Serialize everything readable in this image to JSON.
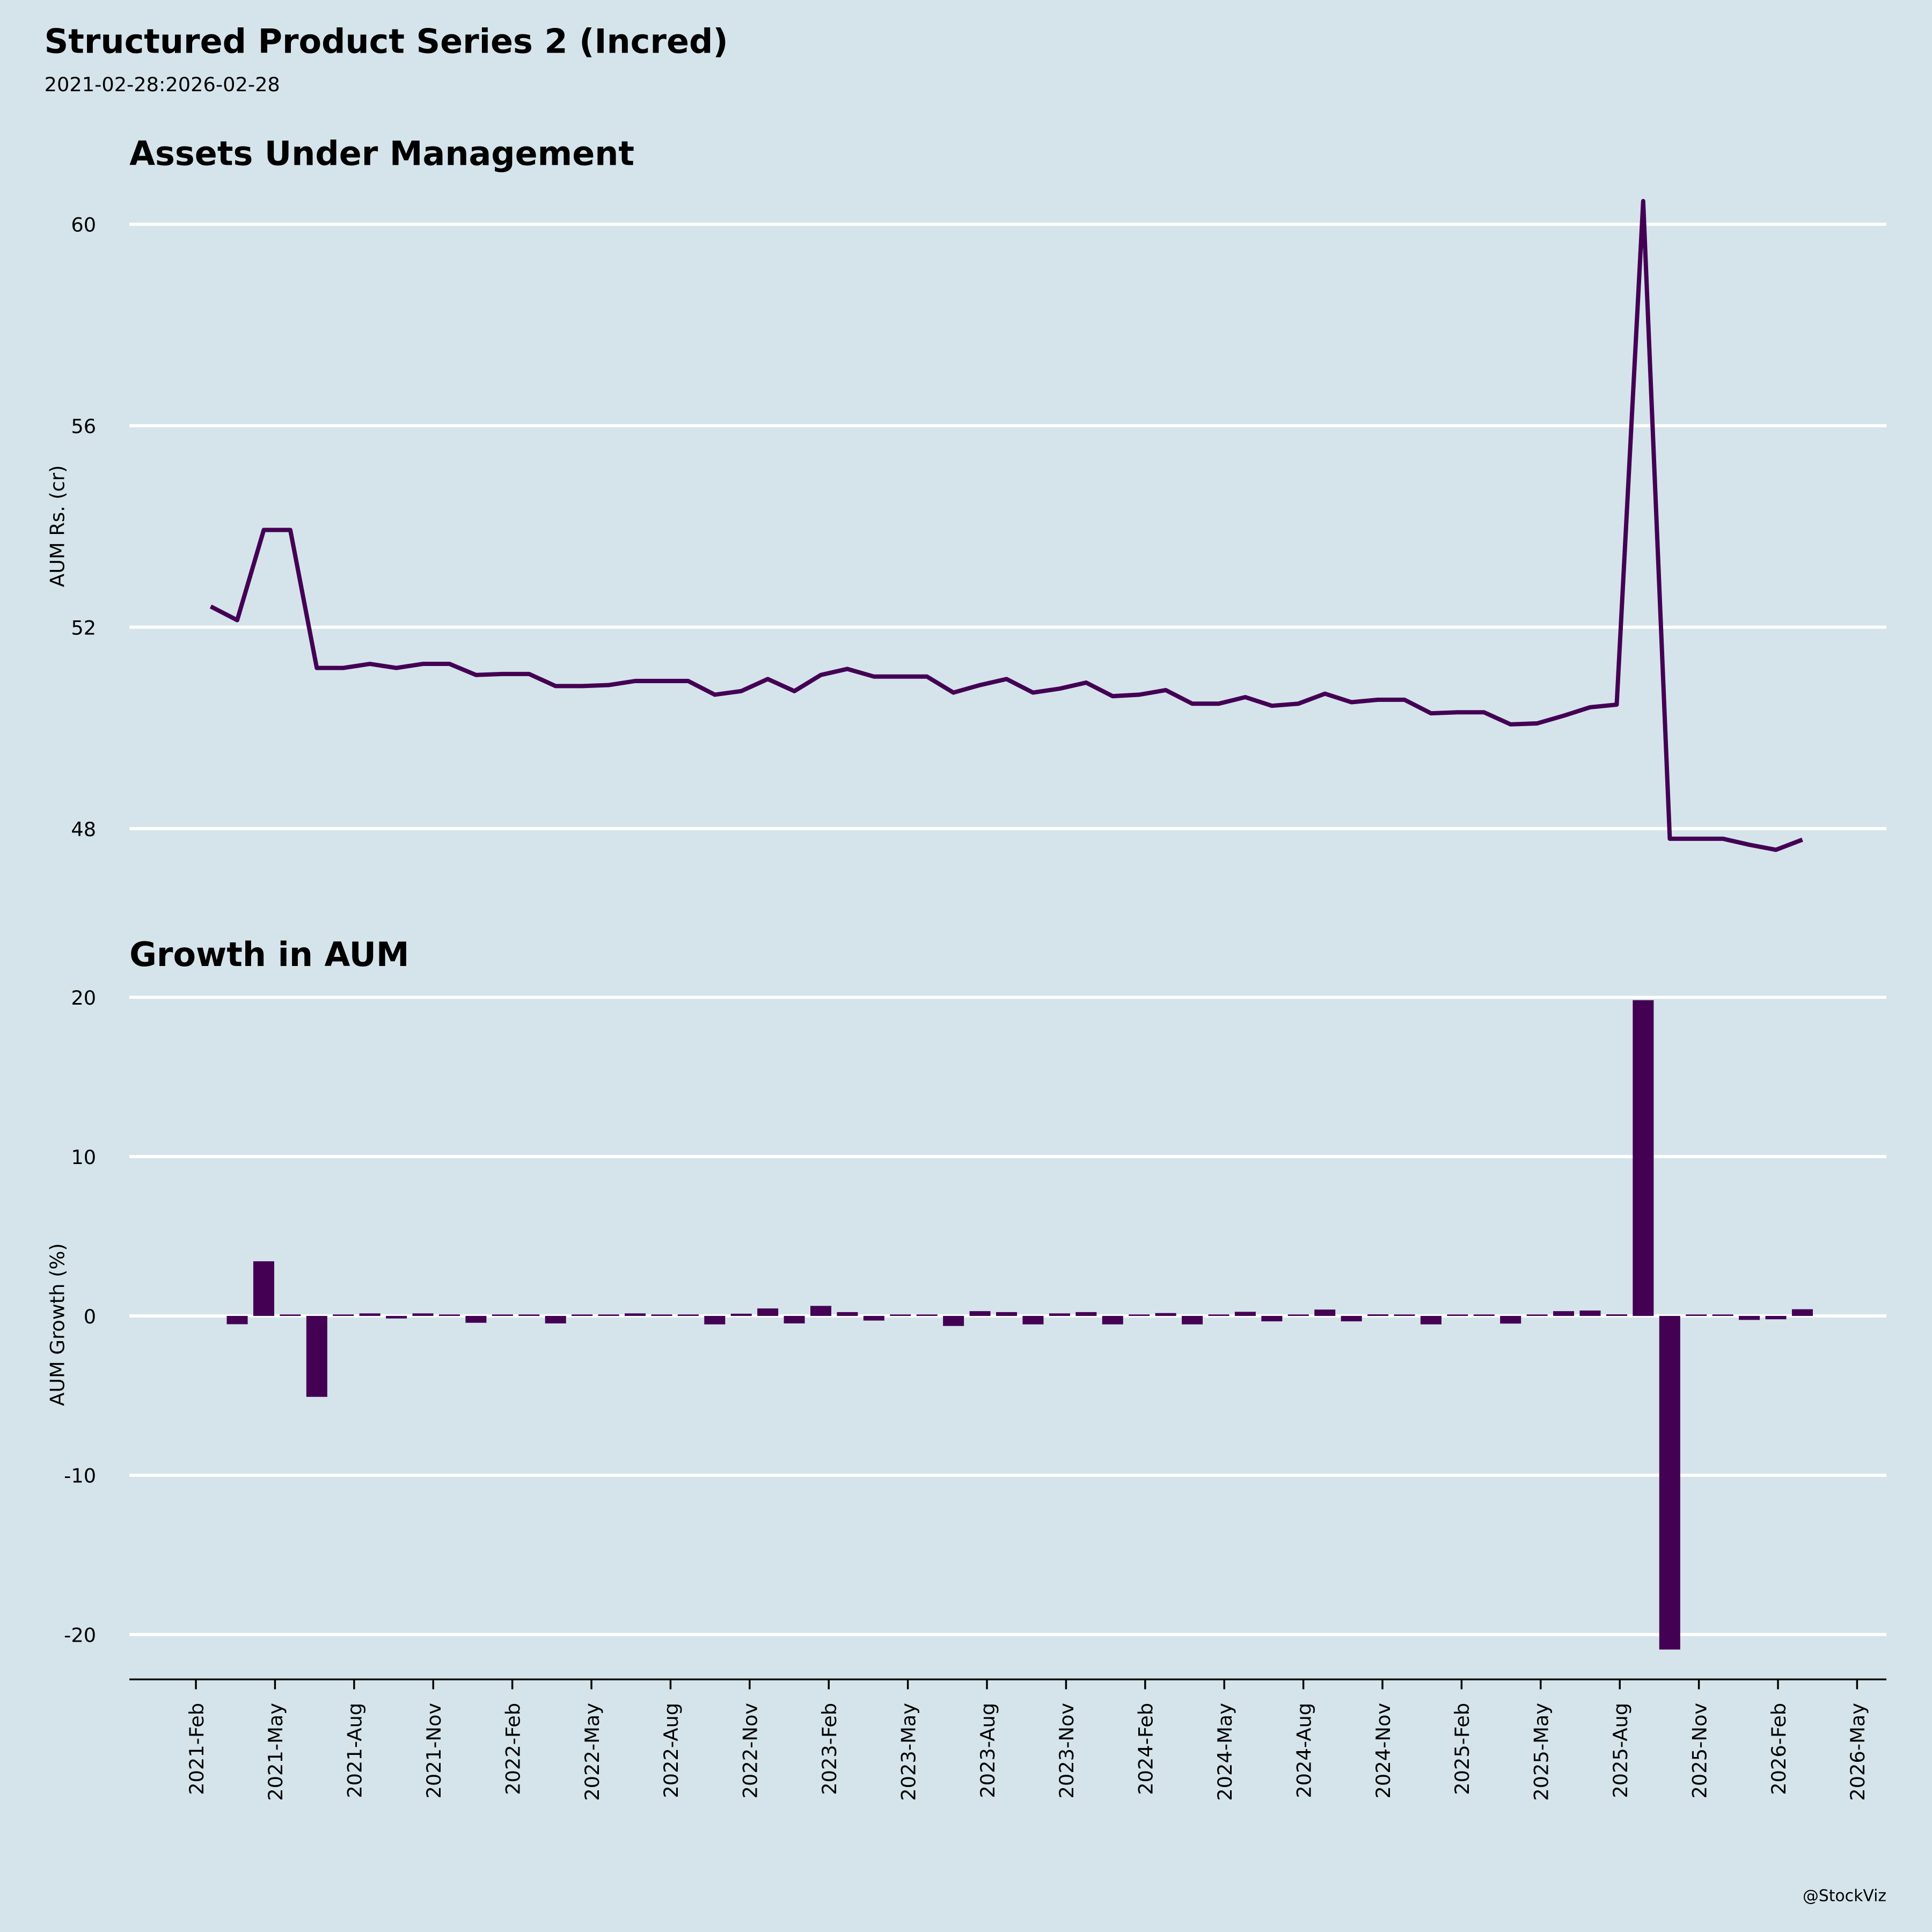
{
  "title": "Structured Product Series 2 (Incred)",
  "subtitle": "2021-02-28:2026-02-28",
  "watermark": "@StockViz",
  "colors": {
    "background": "#d5e4eb",
    "series": "#440154",
    "grid": "#ffffff"
  },
  "chart_data": [
    {
      "type": "line",
      "title": "Assets Under Management",
      "ylabel": "AUM Rs. (cr)",
      "xlabel": "",
      "ylim": [
        46.5,
        61
      ],
      "yticks": [
        48,
        52,
        56,
        60
      ],
      "grid": true,
      "x_start": "2021-02-28",
      "x_frequency": "monthly (month-end)",
      "values": [
        52.41,
        52.14,
        53.93,
        53.93,
        51.19,
        51.19,
        51.27,
        51.19,
        51.27,
        51.27,
        51.05,
        51.07,
        51.07,
        50.83,
        50.83,
        50.85,
        50.93,
        50.93,
        50.93,
        50.66,
        50.73,
        50.97,
        50.73,
        51.05,
        51.17,
        51.02,
        51.02,
        51.02,
        50.7,
        50.85,
        50.97,
        50.7,
        50.78,
        50.9,
        50.63,
        50.66,
        50.75,
        50.48,
        50.48,
        50.61,
        50.44,
        50.48,
        50.68,
        50.51,
        50.56,
        50.56,
        50.29,
        50.31,
        50.31,
        50.07,
        50.09,
        50.24,
        50.41,
        50.46,
        60.46,
        47.8,
        47.8,
        47.8,
        47.68,
        47.58,
        47.78
      ]
    },
    {
      "type": "bar",
      "title": "Growth in AUM",
      "ylabel": "AUM Growth (%)",
      "xlabel": "",
      "ylim": [
        -22,
        20
      ],
      "yticks": [
        -20,
        -10,
        0,
        10,
        20
      ],
      "ytick_labels": [
        "-20",
        "-10",
        "0",
        "10",
        "20"
      ],
      "grid": true,
      "values": [
        null,
        -0.52,
        3.43,
        0,
        -5.08,
        0,
        0.16,
        -0.16,
        0.16,
        0,
        -0.43,
        0.04,
        0,
        -0.47,
        0,
        0.04,
        0.16,
        0,
        0,
        -0.53,
        0.14,
        0.47,
        -0.47,
        0.63,
        0.24,
        -0.29,
        0,
        0,
        -0.63,
        0.3,
        0.24,
        -0.53,
        0.16,
        0.24,
        -0.53,
        0.06,
        0.18,
        -0.53,
        0,
        0.26,
        -0.34,
        0.08,
        0.4,
        -0.34,
        0.1,
        0,
        -0.53,
        0.04,
        0,
        -0.48,
        0.04,
        0.3,
        0.34,
        0.1,
        19.82,
        -20.94,
        0,
        0,
        -0.25,
        -0.21,
        0.42
      ]
    }
  ],
  "x_ticks": [
    "2021-Feb",
    "2021-May",
    "2021-Aug",
    "2021-Nov",
    "2022-Feb",
    "2022-May",
    "2022-Aug",
    "2022-Nov",
    "2023-Feb",
    "2023-May",
    "2023-Aug",
    "2023-Nov",
    "2024-Feb",
    "2024-May",
    "2024-Aug",
    "2024-Nov",
    "2025-Feb",
    "2025-May",
    "2025-Aug",
    "2025-Nov",
    "2026-Feb",
    "2026-May"
  ]
}
